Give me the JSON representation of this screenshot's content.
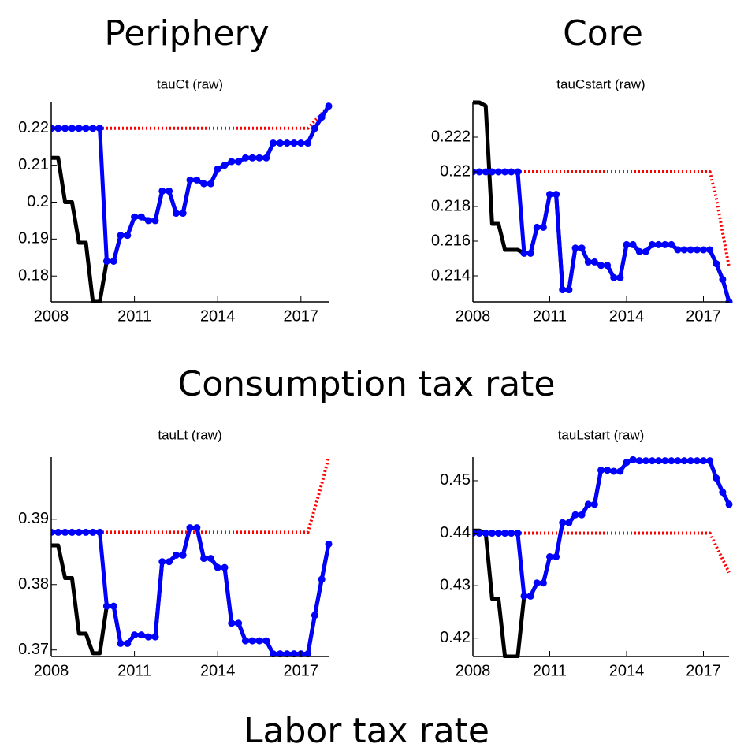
{
  "column_titles": [
    "Periphery",
    "Core"
  ],
  "row_titles": [
    "Consumption tax rate",
    "Labor tax rate"
  ],
  "chart_data": [
    {
      "type": "line",
      "title": "tauCt (raw)",
      "x": [
        2008,
        2008.25,
        2008.5,
        2008.75,
        2009,
        2009.25,
        2009.5,
        2009.75,
        2010,
        2010.25,
        2010.5,
        2010.75,
        2011,
        2011.25,
        2011.5,
        2011.75,
        2012,
        2012.25,
        2012.5,
        2012.75,
        2013,
        2013.25,
        2013.5,
        2013.75,
        2014,
        2014.25,
        2014.5,
        2014.75,
        2015,
        2015.25,
        2015.5,
        2015.75,
        2016,
        2016.25,
        2016.5,
        2016.75,
        2017,
        2017.25,
        2017.5,
        2017.75,
        2018
      ],
      "xlim": [
        2008,
        2018
      ],
      "xticks": [
        2008,
        2011,
        2014,
        2017
      ],
      "ylim": [
        0.173,
        0.227
      ],
      "yticks": [
        0.18,
        0.19,
        0.2,
        0.21,
        0.22
      ],
      "series": [
        {
          "color": "#000000",
          "style": "solid",
          "values": [
            0.212,
            0.212,
            0.2,
            0.2,
            0.189,
            0.189,
            0.173,
            0.173,
            0.184,
            0.184,
            0.191,
            0.191,
            0.196,
            0.196,
            0.195,
            0.195,
            0.203,
            0.203,
            0.197,
            0.197,
            0.206,
            0.206,
            0.205,
            0.205,
            0.209,
            0.21,
            0.211,
            0.211,
            0.212,
            0.212,
            0.212,
            0.212,
            0.216,
            0.216,
            0.216,
            0.216,
            0.216,
            0.216,
            0.22,
            0.223,
            0.226
          ]
        },
        {
          "color": "#ff0000",
          "style": "dotted",
          "values": [
            0.22,
            0.22,
            0.22,
            0.22,
            0.22,
            0.22,
            0.22,
            0.22,
            0.22,
            0.22,
            0.22,
            0.22,
            0.22,
            0.22,
            0.22,
            0.22,
            0.22,
            0.22,
            0.22,
            0.22,
            0.22,
            0.22,
            0.22,
            0.22,
            0.22,
            0.22,
            0.22,
            0.22,
            0.22,
            0.22,
            0.22,
            0.22,
            0.22,
            0.22,
            0.22,
            0.22,
            0.22,
            0.22,
            0.222,
            0.224,
            0.226
          ]
        },
        {
          "color": "#0000ff",
          "style": "markers",
          "values": [
            0.22,
            0.22,
            0.22,
            0.22,
            0.22,
            0.22,
            0.22,
            0.22,
            0.184,
            0.184,
            0.191,
            0.191,
            0.196,
            0.196,
            0.195,
            0.195,
            0.203,
            0.203,
            0.197,
            0.197,
            0.206,
            0.206,
            0.205,
            0.205,
            0.209,
            0.21,
            0.211,
            0.211,
            0.212,
            0.212,
            0.212,
            0.212,
            0.216,
            0.216,
            0.216,
            0.216,
            0.216,
            0.216,
            0.22,
            0.223,
            0.226
          ]
        }
      ]
    },
    {
      "type": "line",
      "title": "tauCstart (raw)",
      "x": [
        2008,
        2008.25,
        2008.5,
        2008.75,
        2009,
        2009.25,
        2009.5,
        2009.75,
        2010,
        2010.25,
        2010.5,
        2010.75,
        2011,
        2011.25,
        2011.5,
        2011.75,
        2012,
        2012.25,
        2012.5,
        2012.75,
        2013,
        2013.25,
        2013.5,
        2013.75,
        2014,
        2014.25,
        2014.5,
        2014.75,
        2015,
        2015.25,
        2015.5,
        2015.75,
        2016,
        2016.25,
        2016.5,
        2016.75,
        2017,
        2017.25,
        2017.5,
        2017.75,
        2018
      ],
      "xlim": [
        2008,
        2018
      ],
      "xticks": [
        2008,
        2011,
        2014,
        2017
      ],
      "ylim": [
        0.2125,
        0.224
      ],
      "yticks": [
        0.214,
        0.216,
        0.218,
        0.22,
        0.222
      ],
      "series": [
        {
          "color": "#000000",
          "style": "solid",
          "values": [
            0.224,
            0.224,
            0.2238,
            0.217,
            0.217,
            0.2155,
            0.2155,
            0.2155,
            0.2153,
            0.2153,
            0.2168,
            0.2168,
            0.2187,
            0.2187,
            0.2132,
            0.2132,
            0.2156,
            0.2156,
            0.2148,
            0.2148,
            0.2146,
            0.2146,
            0.2139,
            0.2139,
            0.2158,
            0.2158,
            0.2154,
            0.2154,
            0.2158,
            0.2158,
            0.2158,
            0.2158,
            0.2155,
            0.2155,
            0.2155,
            0.2155,
            0.2155,
            0.2155,
            0.2147,
            0.2138,
            0.2125
          ]
        },
        {
          "color": "#ff0000",
          "style": "dotted",
          "values": [
            0.22,
            0.22,
            0.22,
            0.22,
            0.22,
            0.22,
            0.22,
            0.22,
            0.22,
            0.22,
            0.22,
            0.22,
            0.22,
            0.22,
            0.22,
            0.22,
            0.22,
            0.22,
            0.22,
            0.22,
            0.22,
            0.22,
            0.22,
            0.22,
            0.22,
            0.22,
            0.22,
            0.22,
            0.22,
            0.22,
            0.22,
            0.22,
            0.22,
            0.22,
            0.22,
            0.22,
            0.22,
            0.22,
            0.2185,
            0.2165,
            0.2145
          ]
        },
        {
          "color": "#0000ff",
          "style": "markers",
          "values": [
            0.22,
            0.22,
            0.22,
            0.22,
            0.22,
            0.22,
            0.22,
            0.22,
            0.2153,
            0.2153,
            0.2168,
            0.2168,
            0.2187,
            0.2187,
            0.2132,
            0.2132,
            0.2156,
            0.2156,
            0.2148,
            0.2148,
            0.2146,
            0.2146,
            0.2139,
            0.2139,
            0.2158,
            0.2158,
            0.2154,
            0.2154,
            0.2158,
            0.2158,
            0.2158,
            0.2158,
            0.2155,
            0.2155,
            0.2155,
            0.2155,
            0.2155,
            0.2155,
            0.2147,
            0.2138,
            0.2125
          ]
        }
      ]
    },
    {
      "type": "line",
      "title": "tauLt (raw)",
      "x": [
        2008,
        2008.25,
        2008.5,
        2008.75,
        2009,
        2009.25,
        2009.5,
        2009.75,
        2010,
        2010.25,
        2010.5,
        2010.75,
        2011,
        2011.25,
        2011.5,
        2011.75,
        2012,
        2012.25,
        2012.5,
        2012.75,
        2013,
        2013.25,
        2013.5,
        2013.75,
        2014,
        2014.25,
        2014.5,
        2014.75,
        2015,
        2015.25,
        2015.5,
        2015.75,
        2016,
        2016.25,
        2016.5,
        2016.75,
        2017,
        2017.25,
        2017.5,
        2017.75,
        2018
      ],
      "xlim": [
        2008,
        2018
      ],
      "xticks": [
        2008,
        2011,
        2014,
        2017
      ],
      "ylim": [
        0.369,
        0.3995
      ],
      "yticks": [
        0.37,
        0.38,
        0.39
      ],
      "series": [
        {
          "color": "#000000",
          "style": "solid",
          "values": [
            0.386,
            0.386,
            0.381,
            0.381,
            0.3725,
            0.3725,
            0.3695,
            0.3695,
            0.3767,
            0.3767,
            0.371,
            0.371,
            0.3723,
            0.3723,
            0.372,
            0.372,
            0.3835,
            0.3835,
            0.3845,
            0.3845,
            0.3887,
            0.3887,
            0.384,
            0.384,
            0.3826,
            0.3826,
            0.3741,
            0.3741,
            0.3714,
            0.3714,
            0.3714,
            0.3714,
            0.3694,
            0.3694,
            0.3694,
            0.3694,
            0.3694,
            0.3694,
            0.3753,
            0.3808,
            0.3862
          ]
        },
        {
          "color": "#ff0000",
          "style": "dotted",
          "values": [
            0.388,
            0.388,
            0.388,
            0.388,
            0.388,
            0.388,
            0.388,
            0.388,
            0.388,
            0.388,
            0.388,
            0.388,
            0.388,
            0.388,
            0.388,
            0.388,
            0.388,
            0.388,
            0.388,
            0.388,
            0.388,
            0.388,
            0.388,
            0.388,
            0.388,
            0.388,
            0.388,
            0.388,
            0.388,
            0.388,
            0.388,
            0.388,
            0.388,
            0.388,
            0.388,
            0.388,
            0.388,
            0.388,
            0.3917,
            0.3954,
            0.3995
          ]
        },
        {
          "color": "#0000ff",
          "style": "markers",
          "values": [
            0.388,
            0.388,
            0.388,
            0.388,
            0.388,
            0.388,
            0.388,
            0.388,
            0.3767,
            0.3767,
            0.371,
            0.371,
            0.3723,
            0.3723,
            0.372,
            0.372,
            0.3835,
            0.3835,
            0.3845,
            0.3845,
            0.3887,
            0.3887,
            0.384,
            0.384,
            0.3826,
            0.3826,
            0.3741,
            0.3741,
            0.3714,
            0.3714,
            0.3714,
            0.3714,
            0.3694,
            0.3694,
            0.3694,
            0.3694,
            0.3694,
            0.3694,
            0.3753,
            0.3808,
            0.3862
          ]
        }
      ]
    },
    {
      "type": "line",
      "title": "tauLstart (raw)",
      "x": [
        2008,
        2008.25,
        2008.5,
        2008.75,
        2009,
        2009.25,
        2009.5,
        2009.75,
        2010,
        2010.25,
        2010.5,
        2010.75,
        2011,
        2011.25,
        2011.5,
        2011.75,
        2012,
        2012.25,
        2012.5,
        2012.75,
        2013,
        2013.25,
        2013.5,
        2013.75,
        2014,
        2014.25,
        2014.5,
        2014.75,
        2015,
        2015.25,
        2015.5,
        2015.75,
        2016,
        2016.25,
        2016.5,
        2016.75,
        2017,
        2017.25,
        2017.5,
        2017.75,
        2018
      ],
      "xlim": [
        2008,
        2018
      ],
      "xticks": [
        2008,
        2011,
        2014,
        2017
      ],
      "ylim": [
        0.4165,
        0.4545
      ],
      "yticks": [
        0.42,
        0.43,
        0.44,
        0.45
      ],
      "series": [
        {
          "color": "#000000",
          "style": "solid",
          "values": [
            0.4405,
            0.4405,
            0.44,
            0.4275,
            0.4275,
            0.4165,
            0.4165,
            0.4165,
            0.428,
            0.428,
            0.4305,
            0.4305,
            0.4355,
            0.4355,
            0.442,
            0.442,
            0.4435,
            0.4435,
            0.4455,
            0.4455,
            0.452,
            0.452,
            0.4518,
            0.4518,
            0.4535,
            0.454,
            0.4538,
            0.4538,
            0.4538,
            0.4538,
            0.4538,
            0.4538,
            0.4538,
            0.4538,
            0.4538,
            0.4538,
            0.4538,
            0.4538,
            0.4505,
            0.4478,
            0.4455
          ]
        },
        {
          "color": "#ff0000",
          "style": "dotted",
          "values": [
            0.44,
            0.44,
            0.44,
            0.44,
            0.44,
            0.44,
            0.44,
            0.44,
            0.44,
            0.44,
            0.44,
            0.44,
            0.44,
            0.44,
            0.44,
            0.44,
            0.44,
            0.44,
            0.44,
            0.44,
            0.44,
            0.44,
            0.44,
            0.44,
            0.44,
            0.44,
            0.44,
            0.44,
            0.44,
            0.44,
            0.44,
            0.44,
            0.44,
            0.44,
            0.44,
            0.44,
            0.44,
            0.44,
            0.4375,
            0.435,
            0.4325
          ]
        },
        {
          "color": "#0000ff",
          "style": "markers",
          "values": [
            0.44,
            0.44,
            0.44,
            0.44,
            0.44,
            0.44,
            0.44,
            0.44,
            0.428,
            0.428,
            0.4305,
            0.4305,
            0.4355,
            0.4355,
            0.442,
            0.442,
            0.4435,
            0.4435,
            0.4455,
            0.4455,
            0.452,
            0.452,
            0.4518,
            0.4518,
            0.4535,
            0.454,
            0.4538,
            0.4538,
            0.4538,
            0.4538,
            0.4538,
            0.4538,
            0.4538,
            0.4538,
            0.4538,
            0.4538,
            0.4538,
            0.4538,
            0.4505,
            0.4478,
            0.4455
          ]
        }
      ]
    }
  ]
}
